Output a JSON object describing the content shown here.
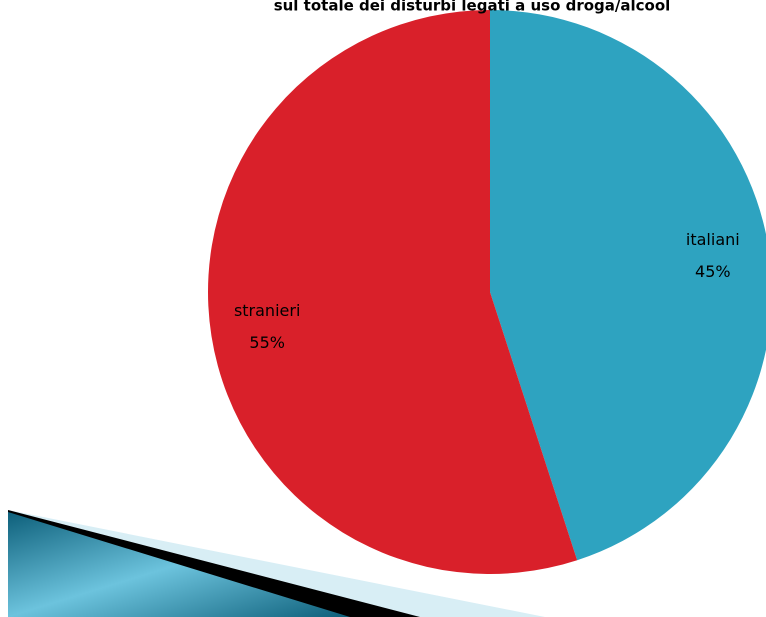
{
  "chart_data": {
    "type": "pie",
    "title": "sul totale dei disturbi legati a uso droga/alcool",
    "categories": [
      "italiani",
      "stranieri"
    ],
    "values": [
      45,
      55
    ],
    "value_labels": [
      "45%",
      "55%"
    ],
    "colors": [
      "#2ea3c0",
      "#d9202a"
    ]
  }
}
